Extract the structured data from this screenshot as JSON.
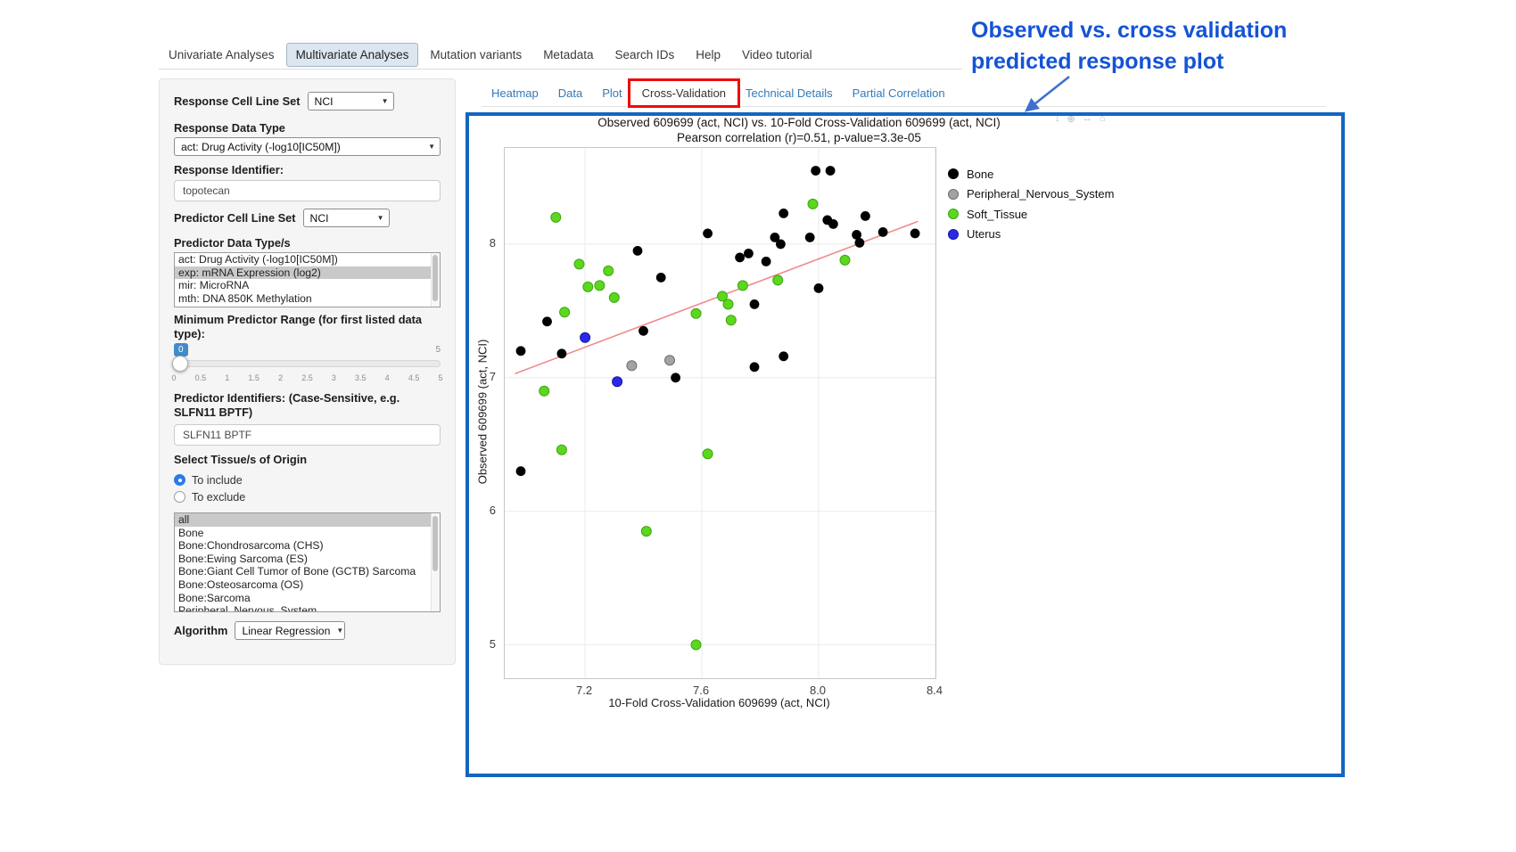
{
  "nav": {
    "tabs": [
      {
        "label": "Univariate Analyses",
        "active": false
      },
      {
        "label": "Multivariate Analyses",
        "active": true
      },
      {
        "label": "Mutation variants",
        "active": false
      },
      {
        "label": "Metadata",
        "active": false
      },
      {
        "label": "Search IDs",
        "active": false
      },
      {
        "label": "Help",
        "active": false
      },
      {
        "label": "Video tutorial",
        "active": false
      }
    ]
  },
  "sidebar": {
    "response_cell_line_set_label": "Response Cell Line Set",
    "response_cell_line_set_value": "NCI",
    "response_data_type_label": "Response Data Type",
    "response_data_type_value": "act: Drug Activity (-log10[IC50M])",
    "response_identifier_label": "Response Identifier:",
    "response_identifier_value": "topotecan",
    "predictor_cell_line_set_label": "Predictor Cell Line Set",
    "predictor_cell_line_set_value": "NCI",
    "predictor_data_types_label": "Predictor Data Type/s",
    "predictor_data_types": [
      {
        "label": "act: Drug Activity (-log10[IC50M])",
        "selected": false
      },
      {
        "label": "exp: mRNA Expression (log2)",
        "selected": true
      },
      {
        "label": "mir: MicroRNA",
        "selected": false
      },
      {
        "label": "mth: DNA 850K Methylation",
        "selected": false
      }
    ],
    "min_range_label": "Minimum Predictor Range (for first listed data type):",
    "min_range_value": "0",
    "min_range_max": "5",
    "slider_ticks": [
      "0",
      "0.5",
      "1",
      "1.5",
      "2",
      "2.5",
      "3",
      "3.5",
      "4",
      "4.5",
      "5"
    ],
    "predictor_identifiers_label": "Predictor Identifiers: (Case-Sensitive, e.g. SLFN11 BPTF)",
    "predictor_identifiers_value": "SLFN11 BPTF",
    "tissue_label": "Select Tissue/s of Origin",
    "tissue_radios": [
      {
        "label": "To include",
        "checked": true
      },
      {
        "label": "To exclude",
        "checked": false
      }
    ],
    "tissue_options": [
      {
        "label": "all",
        "selected": true
      },
      {
        "label": "Bone",
        "selected": false
      },
      {
        "label": "Bone:Chondrosarcoma (CHS)",
        "selected": false
      },
      {
        "label": "Bone:Ewing Sarcoma (ES)",
        "selected": false
      },
      {
        "label": "Bone:Giant Cell Tumor of Bone (GCTB) Sarcoma",
        "selected": false
      },
      {
        "label": "Bone:Osteosarcoma (OS)",
        "selected": false
      },
      {
        "label": "Bone:Sarcoma",
        "selected": false
      },
      {
        "label": "Peripheral_Nervous_System",
        "selected": false
      }
    ],
    "algorithm_label": "Algorithm",
    "algorithm_value": "Linear Regression"
  },
  "result_tabs": [
    {
      "label": "Heatmap",
      "active": false
    },
    {
      "label": "Data",
      "active": false
    },
    {
      "label": "Plot",
      "active": false
    },
    {
      "label": "Cross-Validation",
      "active": true
    },
    {
      "label": "Technical Details",
      "active": false
    },
    {
      "label": "Partial Correlation",
      "active": false
    }
  ],
  "modebar_icons": [
    {
      "name": "download-icon",
      "glyph": "↓"
    },
    {
      "name": "zoom-icon",
      "glyph": "⊕"
    },
    {
      "name": "pan-icon",
      "glyph": "↔"
    },
    {
      "name": "home-icon",
      "glyph": "⌂"
    }
  ],
  "callout": {
    "line1": "Observed vs. cross validation",
    "line2": "predicted response plot",
    "text_color": "#1453d6",
    "box_color": "#1565c0",
    "highlight_color": "#ee0b0b"
  },
  "chart_data": {
    "type": "scatter",
    "title": "Observed 609699 (act, NCI) vs. 10-Fold Cross-Validation 609699 (act, NCI)",
    "subtitle": "Pearson correlation (r)=0.51, p-value=3.3e-05",
    "pearson_r": 0.51,
    "p_value": "3.3e-05",
    "xlabel": "10-Fold Cross-Validation 609699 (act, NCI)",
    "ylabel": "Observed 609699 (act, NCI)",
    "xlim": [
      6.925,
      8.4
    ],
    "ylim": [
      4.75,
      8.72
    ],
    "xticks": [
      7.2,
      7.6,
      8.0,
      8.4
    ],
    "xtick_labels": [
      "7.2",
      "7.6",
      "8.0",
      "8.4"
    ],
    "yticks": [
      5,
      6,
      7,
      8
    ],
    "ytick_labels": [
      "5",
      "6",
      "7",
      "8"
    ],
    "grid": true,
    "legend_position": "right",
    "regression_line": {
      "x1": 6.96,
      "y1": 7.03,
      "x2": 8.34,
      "y2": 8.17,
      "color": "#f08c8c"
    },
    "series": [
      {
        "name": "Bone",
        "color": "#000000",
        "stroke": "#000000",
        "marker_radius": 4.9,
        "points": [
          [
            6.98,
            6.3
          ],
          [
            6.98,
            7.2
          ],
          [
            7.07,
            7.42
          ],
          [
            7.12,
            7.18
          ],
          [
            7.38,
            7.95
          ],
          [
            7.4,
            7.35
          ],
          [
            7.46,
            7.75
          ],
          [
            7.51,
            7.0
          ],
          [
            7.62,
            8.08
          ],
          [
            7.73,
            7.9
          ],
          [
            7.76,
            7.93
          ],
          [
            7.78,
            7.55
          ],
          [
            7.78,
            7.08
          ],
          [
            7.82,
            7.87
          ],
          [
            7.85,
            8.05
          ],
          [
            7.87,
            8.0
          ],
          [
            7.88,
            8.23
          ],
          [
            7.88,
            7.16
          ],
          [
            7.97,
            8.05
          ],
          [
            7.99,
            8.55
          ],
          [
            8.0,
            7.67
          ],
          [
            8.03,
            8.18
          ],
          [
            8.04,
            8.55
          ],
          [
            8.05,
            8.15
          ],
          [
            8.13,
            8.07
          ],
          [
            8.14,
            8.01
          ],
          [
            8.16,
            8.21
          ],
          [
            8.22,
            8.09
          ],
          [
            8.33,
            8.08
          ]
        ]
      },
      {
        "name": "Peripheral_Nervous_System",
        "color": "#a3a3a3",
        "stroke": "#6e6e6e",
        "marker_radius": 5.5,
        "points": [
          [
            7.36,
            7.09
          ],
          [
            7.49,
            7.13
          ]
        ]
      },
      {
        "name": "Soft_Tissue",
        "color": "#5bd81e",
        "stroke": "#3ea50f",
        "marker_radius": 5.5,
        "points": [
          [
            7.06,
            6.9
          ],
          [
            7.1,
            8.2
          ],
          [
            7.12,
            6.46
          ],
          [
            7.13,
            7.49
          ],
          [
            7.18,
            7.85
          ],
          [
            7.21,
            7.68
          ],
          [
            7.25,
            7.69
          ],
          [
            7.28,
            7.8
          ],
          [
            7.3,
            7.6
          ],
          [
            7.41,
            5.85
          ],
          [
            7.58,
            7.48
          ],
          [
            7.58,
            5.0
          ],
          [
            7.62,
            6.43
          ],
          [
            7.67,
            7.61
          ],
          [
            7.69,
            7.55
          ],
          [
            7.7,
            7.43
          ],
          [
            7.74,
            7.69
          ],
          [
            7.86,
            7.73
          ],
          [
            7.98,
            8.3
          ],
          [
            8.09,
            7.88
          ]
        ]
      },
      {
        "name": "Uterus",
        "color": "#2a2ae6",
        "stroke": "#1414a8",
        "marker_radius": 5.5,
        "points": [
          [
            7.2,
            7.3
          ],
          [
            7.31,
            6.97
          ]
        ]
      }
    ]
  }
}
